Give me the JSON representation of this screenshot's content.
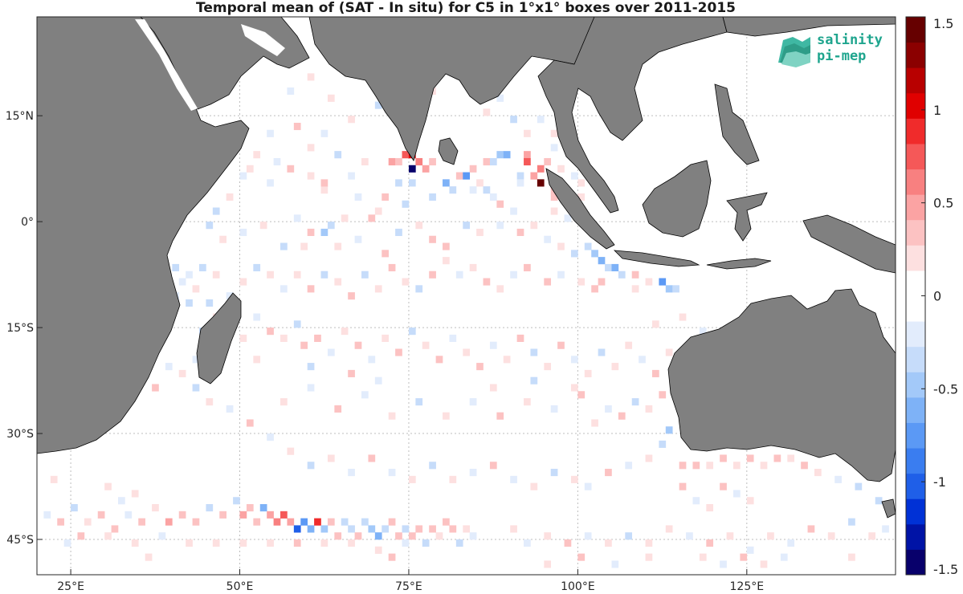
{
  "title": "Temporal mean of (SAT - In situ) for C5 in 1°x1° boxes over 2011-2015",
  "logo": {
    "line1": "salinity",
    "line2": "pi-mep",
    "color": "#1fa58e"
  },
  "colors": {
    "land": "#808080",
    "ocean": "#ffffff",
    "grid": "#bdbdbd"
  },
  "map": {
    "lon_range": [
      20,
      147
    ],
    "lat_range": [
      -50,
      29
    ],
    "x_ticks": [
      {
        "lon": 25,
        "label": "25°E"
      },
      {
        "lon": 50,
        "label": "50°E"
      },
      {
        "lon": 75,
        "label": "75°E"
      },
      {
        "lon": 100,
        "label": "100°E"
      },
      {
        "lon": 125,
        "label": "125°E"
      }
    ],
    "y_ticks": [
      {
        "lat": 15,
        "label": "15°N"
      },
      {
        "lat": 0,
        "label": "0°"
      },
      {
        "lat": -15,
        "label": "15°S"
      },
      {
        "lat": -30,
        "label": "30°S"
      },
      {
        "lat": -45,
        "label": "45°S"
      }
    ]
  },
  "colorbar": {
    "range": [
      -1.5,
      1.5
    ],
    "tick_labels": [
      "1.5",
      "1",
      "0.5",
      "0",
      "-0.5",
      "-1",
      "-1.5"
    ],
    "tick_values": [
      1.5,
      1,
      0.5,
      0,
      -0.5,
      -1,
      -1.5
    ],
    "palette": [
      "#08006b",
      "#0013a6",
      "#0031d6",
      "#1f5fe8",
      "#3a7df0",
      "#5b99f5",
      "#7eb2f7",
      "#a3c9f9",
      "#c6dcfa",
      "#e2ecfc",
      "#ffffff",
      "#ffffff",
      "#fde0e0",
      "#fcc2c2",
      "#fba3a3",
      "#f88080",
      "#f55858",
      "#f02b2b",
      "#e00000",
      "#b80000",
      "#8b0000",
      "#660000"
    ]
  },
  "cells": [
    [
      92,
      9,
      0.5
    ],
    [
      92,
      8,
      0.7
    ],
    [
      94,
      7,
      0.6
    ],
    [
      95,
      8,
      0.4
    ],
    [
      74,
      9,
      0.8
    ],
    [
      75,
      9,
      1.0
    ],
    [
      75,
      7,
      -1.5
    ],
    [
      76,
      8,
      0.6
    ],
    [
      77,
      7,
      0.5
    ],
    [
      72,
      8,
      0.5
    ],
    [
      73,
      8,
      0.4
    ],
    [
      78,
      8,
      0.3
    ],
    [
      82,
      6,
      0.4
    ],
    [
      83,
      6,
      -0.7
    ],
    [
      84,
      7,
      0.3
    ],
    [
      86,
      8,
      0.3
    ],
    [
      87,
      8,
      -0.3
    ],
    [
      88,
      9,
      -0.5
    ],
    [
      89,
      9,
      -0.6
    ],
    [
      91,
      6,
      -0.4
    ],
    [
      93,
      6,
      0.5
    ],
    [
      94,
      5,
      1.4
    ],
    [
      91,
      5,
      -0.2
    ],
    [
      96,
      4,
      0.3
    ],
    [
      100,
      3,
      0.2
    ],
    [
      75,
      5,
      -0.3
    ],
    [
      73,
      5,
      -0.4
    ],
    [
      74,
      2,
      -0.3
    ],
    [
      78,
      3,
      -0.4
    ],
    [
      80,
      5,
      -0.6
    ],
    [
      81,
      4,
      -0.3
    ],
    [
      84,
      4,
      -0.2
    ],
    [
      85,
      5,
      0.2
    ],
    [
      86,
      4,
      -0.3
    ],
    [
      87,
      3,
      -0.2
    ],
    [
      88,
      2,
      0.3
    ],
    [
      90,
      1,
      -0.2
    ],
    [
      96,
      1,
      0.2
    ],
    [
      98,
      0,
      -0.2
    ],
    [
      70,
      1,
      0.2
    ],
    [
      71,
      3,
      0.4
    ],
    [
      69,
      0,
      0.3
    ],
    [
      67,
      3,
      -0.2
    ],
    [
      65,
      0,
      0.2
    ],
    [
      63,
      -1,
      -0.3
    ],
    [
      60,
      -2,
      0.3
    ],
    [
      58,
      0,
      -0.2
    ],
    [
      62,
      4,
      0.2
    ],
    [
      60,
      6,
      0.2
    ],
    [
      57,
      7,
      0.3
    ],
    [
      55,
      8,
      -0.2
    ],
    [
      52,
      9,
      0.2
    ],
    [
      50,
      6,
      -0.2
    ],
    [
      48,
      3,
      0.2
    ],
    [
      46,
      1,
      -0.4
    ],
    [
      45,
      -1,
      -0.3
    ],
    [
      47,
      -3,
      0.2
    ],
    [
      50,
      -2,
      -0.2
    ],
    [
      53,
      -1,
      0.2
    ],
    [
      56,
      -4,
      -0.3
    ],
    [
      59,
      -4,
      0.2
    ],
    [
      62,
      -2,
      -0.5
    ],
    [
      64,
      -4,
      0.2
    ],
    [
      67,
      -3,
      -0.2
    ],
    [
      71,
      -5,
      0.4
    ],
    [
      73,
      -2,
      -0.4
    ],
    [
      76,
      -1,
      0.2
    ],
    [
      78,
      -3,
      0.4
    ],
    [
      80,
      -4,
      0.3
    ],
    [
      83,
      -1,
      -0.3
    ],
    [
      85,
      -2,
      0.2
    ],
    [
      88,
      -1,
      -0.2
    ],
    [
      91,
      -2,
      0.3
    ],
    [
      93,
      -1,
      0.2
    ],
    [
      95,
      -3,
      -0.2
    ],
    [
      97,
      -4,
      0.2
    ],
    [
      99,
      -5,
      -0.3
    ],
    [
      101,
      -4,
      -0.4
    ],
    [
      102,
      -5,
      -0.5
    ],
    [
      103,
      -6,
      -0.6
    ],
    [
      104,
      -7,
      -0.4
    ],
    [
      105,
      -7,
      -0.6
    ],
    [
      106,
      -8,
      -0.3
    ],
    [
      108,
      -8,
      0.3
    ],
    [
      112,
      -9,
      -0.7
    ],
    [
      113,
      -10,
      -0.5
    ],
    [
      114,
      -10,
      -0.3
    ],
    [
      110,
      -9,
      0.2
    ],
    [
      108,
      -10,
      0.2
    ],
    [
      103,
      -9,
      0.3
    ],
    [
      102,
      -10,
      0.4
    ],
    [
      100,
      -9,
      0.2
    ],
    [
      97,
      -8,
      -0.2
    ],
    [
      95,
      -9,
      0.3
    ],
    [
      92,
      -7,
      0.3
    ],
    [
      90,
      -8,
      -0.2
    ],
    [
      88,
      -10,
      0.2
    ],
    [
      86,
      -9,
      0.3
    ],
    [
      84,
      -7,
      0.2
    ],
    [
      82,
      -8,
      -0.2
    ],
    [
      80,
      -6,
      0.2
    ],
    [
      78,
      -8,
      0.3
    ],
    [
      76,
      -10,
      -0.3
    ],
    [
      74,
      -9,
      0.2
    ],
    [
      72,
      -7,
      0.3
    ],
    [
      70,
      -10,
      0.2
    ],
    [
      68,
      -8,
      -0.3
    ],
    [
      66,
      -11,
      0.4
    ],
    [
      64,
      -9,
      0.2
    ],
    [
      62,
      -8,
      -0.4
    ],
    [
      60,
      -10,
      0.3
    ],
    [
      58,
      -8,
      0.2
    ],
    [
      56,
      -10,
      -0.2
    ],
    [
      54,
      -8,
      0.2
    ],
    [
      52,
      -7,
      -0.3
    ],
    [
      50,
      -9,
      0.2
    ],
    [
      48,
      -11,
      -0.2
    ],
    [
      46,
      -8,
      0.2
    ],
    [
      44,
      -7,
      -0.3
    ],
    [
      42,
      -8,
      -0.2
    ],
    [
      40,
      -7,
      -0.3
    ],
    [
      41,
      -9,
      -0.2
    ],
    [
      43,
      -10,
      0.2
    ],
    [
      45,
      -12,
      -0.3
    ],
    [
      42,
      -12,
      -0.3
    ],
    [
      40,
      -11,
      -0.2
    ],
    [
      46,
      -14,
      0.2
    ],
    [
      44,
      -16,
      -0.3
    ],
    [
      48,
      -15,
      0.2
    ],
    [
      50,
      -17,
      0.2
    ],
    [
      52,
      -14,
      -0.2
    ],
    [
      54,
      -16,
      0.3
    ],
    [
      56,
      -17,
      0.2
    ],
    [
      58,
      -15,
      -0.3
    ],
    [
      59,
      -18,
      0.4
    ],
    [
      61,
      -17,
      0.3
    ],
    [
      63,
      -19,
      -0.2
    ],
    [
      65,
      -16,
      0.2
    ],
    [
      67,
      -18,
      0.3
    ],
    [
      69,
      -20,
      -0.2
    ],
    [
      71,
      -17,
      0.2
    ],
    [
      73,
      -19,
      0.3
    ],
    [
      75,
      -16,
      -0.4
    ],
    [
      77,
      -18,
      0.2
    ],
    [
      79,
      -20,
      0.3
    ],
    [
      81,
      -17,
      -0.2
    ],
    [
      83,
      -19,
      0.2
    ],
    [
      85,
      -21,
      0.3
    ],
    [
      87,
      -18,
      -0.2
    ],
    [
      89,
      -20,
      0.2
    ],
    [
      91,
      -17,
      0.3
    ],
    [
      93,
      -19,
      -0.3
    ],
    [
      95,
      -21,
      0.2
    ],
    [
      97,
      -18,
      0.3
    ],
    [
      99,
      -20,
      -0.2
    ],
    [
      101,
      -22,
      0.2
    ],
    [
      103,
      -19,
      -0.3
    ],
    [
      105,
      -21,
      0.2
    ],
    [
      107,
      -18,
      0.2
    ],
    [
      109,
      -20,
      -0.2
    ],
    [
      111,
      -22,
      0.3
    ],
    [
      113,
      -19,
      0.2
    ],
    [
      115,
      -21,
      -0.2
    ],
    [
      112,
      -25,
      0.3
    ],
    [
      110,
      -27,
      0.2
    ],
    [
      108,
      -26,
      -0.3
    ],
    [
      106,
      -28,
      0.3
    ],
    [
      104,
      -27,
      -0.2
    ],
    [
      102,
      -29,
      0.2
    ],
    [
      113,
      -30,
      -0.5
    ],
    [
      112,
      -32,
      -0.3
    ],
    [
      110,
      -34,
      0.2
    ],
    [
      107,
      -35,
      -0.2
    ],
    [
      104,
      -36,
      0.3
    ],
    [
      101,
      -38,
      -0.2
    ],
    [
      99,
      -37,
      0.2
    ],
    [
      96,
      -36,
      -0.3
    ],
    [
      93,
      -38,
      0.2
    ],
    [
      90,
      -37,
      -0.2
    ],
    [
      87,
      -35,
      0.3
    ],
    [
      84,
      -36,
      -0.2
    ],
    [
      81,
      -37,
      0.2
    ],
    [
      78,
      -35,
      -0.3
    ],
    [
      75,
      -37,
      0.2
    ],
    [
      72,
      -36,
      -0.2
    ],
    [
      69,
      -34,
      0.3
    ],
    [
      66,
      -36,
      -0.2
    ],
    [
      63,
      -34,
      0.2
    ],
    [
      60,
      -35,
      -0.3
    ],
    [
      57,
      -33,
      0.2
    ],
    [
      54,
      -31,
      -0.2
    ],
    [
      51,
      -29,
      0.3
    ],
    [
      48,
      -27,
      -0.2
    ],
    [
      45,
      -26,
      0.2
    ],
    [
      43,
      -24,
      -0.3
    ],
    [
      41,
      -22,
      0.2
    ],
    [
      39,
      -21,
      -0.2
    ],
    [
      37,
      -24,
      0.3
    ],
    [
      56,
      -26,
      0.2
    ],
    [
      60,
      -24,
      -0.2
    ],
    [
      64,
      -27,
      0.3
    ],
    [
      68,
      -25,
      -0.2
    ],
    [
      72,
      -28,
      0.2
    ],
    [
      76,
      -26,
      -0.3
    ],
    [
      80,
      -28,
      0.2
    ],
    [
      84,
      -26,
      -0.2
    ],
    [
      88,
      -28,
      0.3
    ],
    [
      92,
      -26,
      0.2
    ],
    [
      96,
      -27,
      -0.2
    ],
    [
      100,
      -25,
      0.3
    ],
    [
      30,
      -38,
      0.2
    ],
    [
      32,
      -40,
      -0.2
    ],
    [
      34,
      -39,
      0.2
    ],
    [
      22,
      -37,
      0.2
    ],
    [
      21,
      -42,
      -0.2
    ],
    [
      23,
      -43,
      0.3
    ],
    [
      25,
      -41,
      -0.3
    ],
    [
      27,
      -43,
      0.2
    ],
    [
      29,
      -42,
      0.4
    ],
    [
      31,
      -44,
      0.3
    ],
    [
      33,
      -42,
      -0.2
    ],
    [
      35,
      -43,
      0.3
    ],
    [
      37,
      -41,
      0.2
    ],
    [
      39,
      -43,
      0.5
    ],
    [
      41,
      -42,
      0.4
    ],
    [
      43,
      -43,
      0.3
    ],
    [
      45,
      -41,
      -0.3
    ],
    [
      47,
      -42,
      0.4
    ],
    [
      49,
      -40,
      -0.4
    ],
    [
      50,
      -42,
      0.5
    ],
    [
      51,
      -41,
      0.4
    ],
    [
      52,
      -43,
      0.3
    ],
    [
      53,
      -41,
      -0.6
    ],
    [
      54,
      -42,
      0.5
    ],
    [
      55,
      -43,
      0.6
    ],
    [
      56,
      -42,
      0.7
    ],
    [
      57,
      -43,
      0.5
    ],
    [
      58,
      -44,
      -1.0
    ],
    [
      59,
      -43,
      -0.8
    ],
    [
      60,
      -44,
      -0.6
    ],
    [
      61,
      -43,
      0.9
    ],
    [
      62,
      -44,
      -0.5
    ],
    [
      63,
      -43,
      0.4
    ],
    [
      64,
      -45,
      0.3
    ],
    [
      65,
      -43,
      -0.3
    ],
    [
      66,
      -44,
      -0.4
    ],
    [
      67,
      -45,
      0.3
    ],
    [
      68,
      -43,
      -0.3
    ],
    [
      69,
      -44,
      -0.5
    ],
    [
      70,
      -45,
      -0.6
    ],
    [
      71,
      -44,
      -0.4
    ],
    [
      72,
      -43,
      0.3
    ],
    [
      73,
      -45,
      0.3
    ],
    [
      74,
      -44,
      -0.3
    ],
    [
      75,
      -45,
      0.4
    ],
    [
      76,
      -44,
      0.3
    ],
    [
      77,
      -46,
      -0.4
    ],
    [
      78,
      -44,
      0.3
    ],
    [
      79,
      -45,
      0.2
    ],
    [
      80,
      -43,
      0.4
    ],
    [
      81,
      -44,
      0.3
    ],
    [
      82,
      -46,
      -0.3
    ],
    [
      83,
      -44,
      0.2
    ],
    [
      84,
      -45,
      -0.2
    ],
    [
      70,
      -47,
      0.2
    ],
    [
      72,
      -48,
      0.3
    ],
    [
      74,
      -46,
      -0.2
    ],
    [
      66,
      -46,
      0.2
    ],
    [
      62,
      -46,
      0.2
    ],
    [
      58,
      -46,
      0.3
    ],
    [
      54,
      -46,
      0.2
    ],
    [
      50,
      -46,
      0.2
    ],
    [
      46,
      -46,
      0.2
    ],
    [
      42,
      -46,
      0.2
    ],
    [
      38,
      -45,
      -0.2
    ],
    [
      34,
      -46,
      0.2
    ],
    [
      30,
      -45,
      0.2
    ],
    [
      26,
      -45,
      0.3
    ],
    [
      24,
      -46,
      -0.2
    ],
    [
      36,
      -48,
      0.2
    ],
    [
      90,
      -44,
      0.2
    ],
    [
      92,
      -46,
      -0.2
    ],
    [
      95,
      -45,
      0.2
    ],
    [
      98,
      -46,
      0.3
    ],
    [
      101,
      -45,
      -0.2
    ],
    [
      104,
      -46,
      0.2
    ],
    [
      107,
      -45,
      -0.3
    ],
    [
      110,
      -46,
      0.2
    ],
    [
      113,
      -44,
      0.2
    ],
    [
      116,
      -45,
      -0.2
    ],
    [
      119,
      -46,
      0.3
    ],
    [
      122,
      -45,
      0.2
    ],
    [
      125,
      -47,
      -0.2
    ],
    [
      128,
      -45,
      0.2
    ],
    [
      131,
      -46,
      -0.2
    ],
    [
      134,
      -44,
      0.3
    ],
    [
      137,
      -45,
      0.2
    ],
    [
      140,
      -43,
      -0.3
    ],
    [
      143,
      -45,
      0.2
    ],
    [
      145,
      -44,
      -0.2
    ],
    [
      115,
      -38,
      0.3
    ],
    [
      117,
      -40,
      -0.2
    ],
    [
      119,
      -41,
      0.2
    ],
    [
      121,
      -38,
      0.3
    ],
    [
      123,
      -39,
      -0.2
    ],
    [
      125,
      -40,
      0.2
    ],
    [
      115,
      -35,
      0.3
    ],
    [
      117,
      -35,
      0.4
    ],
    [
      119,
      -35,
      0.2
    ],
    [
      121,
      -34,
      0.3
    ],
    [
      123,
      -35,
      0.2
    ],
    [
      125,
      -34,
      0.3
    ],
    [
      127,
      -35,
      0.2
    ],
    [
      129,
      -34,
      0.3
    ],
    [
      131,
      -34,
      0.2
    ],
    [
      133,
      -35,
      0.3
    ],
    [
      135,
      -36,
      0.2
    ],
    [
      138,
      -37,
      -0.2
    ],
    [
      141,
      -38,
      -0.3
    ],
    [
      144,
      -40,
      -0.4
    ],
    [
      118,
      -48,
      0.2
    ],
    [
      121,
      -49,
      -0.2
    ],
    [
      124,
      -48,
      0.3
    ],
    [
      127,
      -49,
      0.2
    ],
    [
      130,
      -48,
      -0.2
    ],
    [
      140,
      -48,
      0.2
    ],
    [
      110,
      -48,
      0.2
    ],
    [
      105,
      -49,
      -0.2
    ],
    [
      100,
      -48,
      0.3
    ],
    [
      95,
      -49,
      0.2
    ],
    [
      45,
      -22,
      0.3
    ],
    [
      43,
      -20,
      -0.2
    ],
    [
      52,
      -20,
      0.2
    ],
    [
      60,
      -21,
      -0.3
    ],
    [
      66,
      -22,
      0.3
    ],
    [
      70,
      -23,
      -0.2
    ],
    [
      87,
      -24,
      0.2
    ],
    [
      93,
      -23,
      -0.3
    ],
    [
      99,
      -24,
      0.2
    ],
    [
      111,
      -15,
      0.2
    ],
    [
      115,
      -14,
      0.2
    ],
    [
      118,
      -16,
      -0.2
    ],
    [
      121,
      -17,
      0.2
    ],
    [
      125,
      -15,
      0.2
    ],
    [
      128,
      -17,
      -0.2
    ],
    [
      76,
      16,
      -0.2
    ],
    [
      78,
      18,
      0.2
    ],
    [
      70,
      16,
      -0.3
    ],
    [
      66,
      14,
      0.2
    ],
    [
      62,
      12,
      -0.2
    ],
    [
      58,
      13,
      0.3
    ],
    [
      54,
      12,
      -0.2
    ],
    [
      60,
      10,
      0.2
    ],
    [
      64,
      9,
      -0.3
    ],
    [
      68,
      8,
      0.2
    ],
    [
      66,
      6,
      -0.2
    ],
    [
      62,
      5,
      0.3
    ],
    [
      54,
      5,
      -0.2
    ],
    [
      51,
      7,
      0.2
    ],
    [
      48,
      10,
      -0.2
    ],
    [
      45,
      11,
      0.2
    ],
    [
      68,
      24,
      0.2
    ],
    [
      64,
      22,
      -0.2
    ],
    [
      70,
      22,
      -0.3
    ],
    [
      71,
      21,
      -0.2
    ],
    [
      60,
      20,
      0.2
    ],
    [
      57,
      18,
      -0.2
    ],
    [
      63,
      17,
      0.2
    ],
    [
      89,
      20,
      0.2
    ],
    [
      88,
      17,
      -0.2
    ],
    [
      86,
      15,
      0.2
    ],
    [
      90,
      14,
      -0.3
    ],
    [
      92,
      12,
      0.2
    ],
    [
      94,
      14,
      -0.2
    ],
    [
      96,
      12,
      0.2
    ],
    [
      96,
      10,
      -0.2
    ],
    [
      97,
      7,
      0.2
    ],
    [
      99,
      6,
      -0.2
    ],
    [
      100,
      5,
      0.2
    ],
    [
      96,
      3,
      0.3
    ]
  ]
}
